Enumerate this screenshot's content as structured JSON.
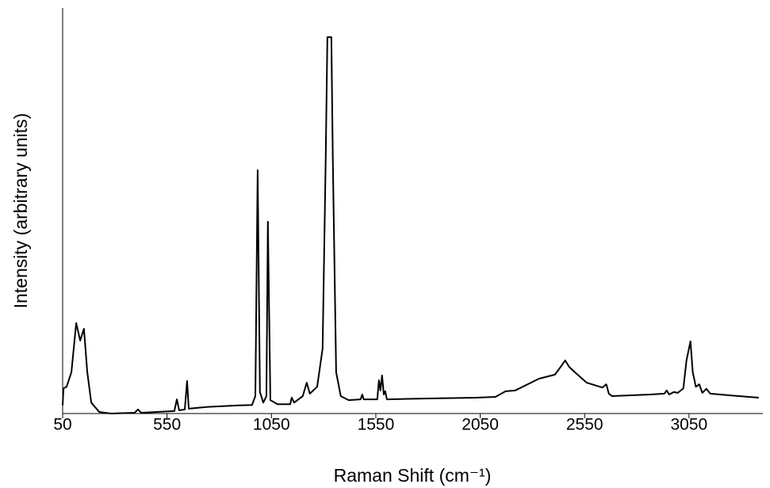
{
  "chart_data": {
    "type": "line",
    "x_label": "Raman Shift (cm⁻¹)",
    "y_label": "Intensity (arbitrary units)",
    "xlim": [
      50,
      3400
    ],
    "ylim": [
      0,
      100
    ],
    "xticks": [
      50,
      550,
      1050,
      1550,
      2050,
      2550,
      3050
    ],
    "grid": false,
    "series": [
      {
        "color": "#000000",
        "x": [
          50,
          54,
          69,
          92,
          115,
          134,
          152,
          168,
          187,
          225,
          282,
          395,
          411,
          426,
          585,
          597,
          608,
          635,
          646,
          654,
          737,
          889,
          957,
          973,
          984,
          995,
          1011,
          1026,
          1033,
          1045,
          1079,
          1140,
          1147,
          1159,
          1200,
          1219,
          1234,
          1269,
          1295,
          1310,
          1318,
          1337,
          1344,
          1360,
          1382,
          1420,
          1477,
          1485,
          1492,
          1557,
          1565,
          1572,
          1580,
          1588,
          1595,
          1603,
          1800,
          2028,
          2123,
          2172,
          2218,
          2332,
          2408,
          2438,
          2457,
          2476,
          2503,
          2560,
          2635,
          2654,
          2666,
          2681,
          2863,
          2932,
          2943,
          2955,
          2977,
          2996,
          3023,
          3038,
          3057,
          3068,
          3083,
          3099,
          3114,
          3133,
          3152,
          3243,
          3384
        ],
        "values": [
          2.0,
          6.2,
          6.6,
          10.2,
          22.3,
          18.0,
          20.9,
          10.2,
          2.7,
          0.4,
          0,
          0.2,
          1.0,
          0.2,
          0.6,
          3.5,
          0.8,
          1.0,
          8.0,
          1.2,
          1.6,
          2.0,
          2.1,
          4.3,
          60.0,
          5.3,
          2.7,
          4.3,
          47.3,
          3.3,
          2.3,
          2.3,
          3.9,
          2.7,
          4.3,
          7.6,
          4.9,
          6.6,
          16.0,
          62.9,
          92.8,
          92.8,
          62.9,
          10.2,
          4.3,
          3.3,
          3.5,
          4.7,
          3.5,
          3.5,
          8.2,
          5.7,
          9.4,
          4.7,
          5.5,
          3.5,
          3.7,
          3.9,
          4.1,
          5.5,
          5.7,
          8.6,
          9.6,
          11.7,
          13.1,
          11.5,
          10.2,
          7.6,
          6.4,
          7.2,
          4.9,
          4.3,
          4.7,
          4.9,
          5.7,
          4.7,
          5.3,
          5.1,
          6.2,
          13.1,
          17.8,
          10.2,
          6.6,
          7.2,
          5.1,
          6.1,
          4.9,
          4.5,
          3.9
        ]
      }
    ]
  }
}
